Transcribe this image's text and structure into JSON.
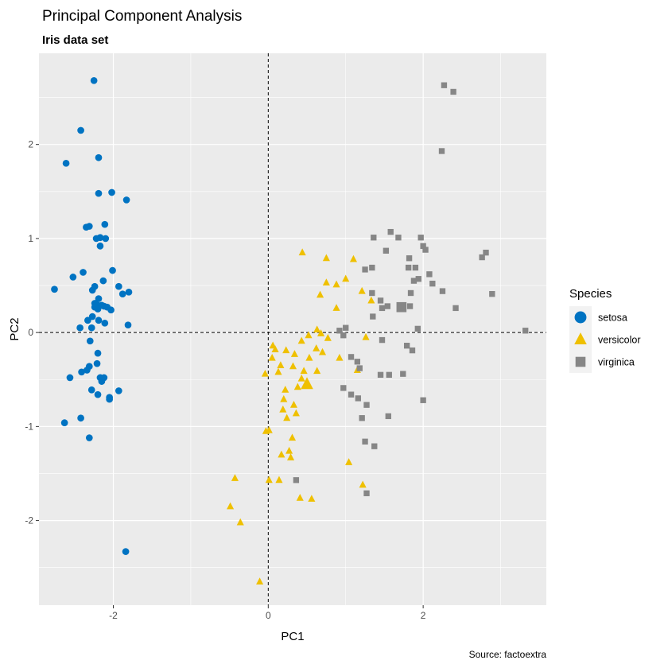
{
  "chart_data": {
    "type": "scatter",
    "title": "Principal Component Analysis",
    "subtitle": "Iris data set",
    "xlabel": "PC1",
    "ylabel": "PC2",
    "caption": "Source: factoextra",
    "xlim": [
      -2.96,
      3.59
    ],
    "ylim": [
      -2.9,
      2.97
    ],
    "xticks": [
      -2,
      0,
      2
    ],
    "xtick_labels": [
      "-2",
      "0",
      "2"
    ],
    "yticks": [
      -2,
      -1,
      0,
      1,
      2
    ],
    "ytick_labels": [
      "-2",
      "-1",
      "0",
      "1",
      "2"
    ],
    "grid": true,
    "reference_lines": {
      "x": 0,
      "y": 0
    },
    "legend": {
      "title": "Species",
      "position": "right",
      "entries": [
        {
          "label": "setosa",
          "color": "#0073C2",
          "shape": "circle"
        },
        {
          "label": "versicolor",
          "color": "#EFC000",
          "shape": "triangle"
        },
        {
          "label": "virginica",
          "color": "#868686",
          "shape": "square"
        }
      ]
    },
    "series": [
      {
        "name": "setosa",
        "color": "#0073C2",
        "shape": "circle",
        "centroid": null,
        "points": [
          [
            -2.25,
            2.68
          ],
          [
            -2.42,
            2.15
          ],
          [
            -2.61,
            1.8
          ],
          [
            -2.19,
            1.86
          ],
          [
            -2.02,
            1.49
          ],
          [
            -2.19,
            1.48
          ],
          [
            -1.83,
            1.41
          ],
          [
            -2.11,
            1.15
          ],
          [
            -2.31,
            1.13
          ],
          [
            -2.35,
            1.12
          ],
          [
            -2.17,
            1.01
          ],
          [
            -2.22,
            1.0
          ],
          [
            -2.1,
            1.0
          ],
          [
            -2.17,
            0.92
          ],
          [
            -2.01,
            0.66
          ],
          [
            -2.39,
            0.64
          ],
          [
            -2.52,
            0.59
          ],
          [
            -2.13,
            0.55
          ],
          [
            -2.24,
            0.49
          ],
          [
            -1.93,
            0.49
          ],
          [
            -2.27,
            0.45
          ],
          [
            -1.8,
            0.43
          ],
          [
            -2.76,
            0.46
          ],
          [
            -1.88,
            0.41
          ],
          [
            -2.19,
            0.36
          ],
          [
            -2.24,
            0.31
          ],
          [
            -2.2,
            0.29
          ],
          [
            -2.15,
            0.29
          ],
          [
            -2.24,
            0.27
          ],
          [
            -2.12,
            0.28
          ],
          [
            -2.08,
            0.27
          ],
          [
            -2.2,
            0.25
          ],
          [
            -2.03,
            0.24
          ],
          [
            -2.27,
            0.17
          ],
          [
            -2.19,
            0.13
          ],
          [
            -2.33,
            0.13
          ],
          [
            -2.11,
            0.1
          ],
          [
            -1.81,
            0.08
          ],
          [
            -2.28,
            0.05
          ],
          [
            -2.43,
            0.05
          ],
          [
            -2.3,
            -0.09
          ],
          [
            -2.2,
            -0.22
          ],
          [
            -2.21,
            -0.33
          ],
          [
            -2.31,
            -0.36
          ],
          [
            -2.34,
            -0.4
          ],
          [
            -2.41,
            -0.42
          ],
          [
            -2.17,
            -0.48
          ],
          [
            -2.12,
            -0.48
          ],
          [
            -2.15,
            -0.52
          ],
          [
            -2.56,
            -0.48
          ],
          [
            -1.93,
            -0.62
          ],
          [
            -2.28,
            -0.61
          ],
          [
            -2.2,
            -0.66
          ],
          [
            -2.05,
            -0.69
          ],
          [
            -2.05,
            -0.71
          ],
          [
            -2.42,
            -0.91
          ],
          [
            -2.63,
            -0.96
          ],
          [
            -2.31,
            -1.12
          ],
          [
            -1.84,
            -2.33
          ]
        ]
      },
      {
        "name": "versicolor",
        "color": "#EFC000",
        "shape": "triangle",
        "centroid": [
          0.5,
          -0.55
        ],
        "points": [
          [
            0.44,
            0.85
          ],
          [
            0.75,
            0.79
          ],
          [
            1.1,
            0.78
          ],
          [
            1.0,
            0.57
          ],
          [
            0.75,
            0.53
          ],
          [
            0.88,
            0.51
          ],
          [
            1.21,
            0.44
          ],
          [
            0.67,
            0.4
          ],
          [
            1.33,
            0.34
          ],
          [
            0.88,
            0.26
          ],
          [
            0.63,
            0.03
          ],
          [
            0.68,
            -0.01
          ],
          [
            0.52,
            -0.03
          ],
          [
            0.77,
            -0.06
          ],
          [
            1.26,
            -0.05
          ],
          [
            0.43,
            -0.09
          ],
          [
            0.06,
            -0.14
          ],
          [
            0.09,
            -0.18
          ],
          [
            0.23,
            -0.19
          ],
          [
            0.62,
            -0.17
          ],
          [
            0.7,
            -0.21
          ],
          [
            0.34,
            -0.23
          ],
          [
            0.53,
            -0.27
          ],
          [
            0.05,
            -0.27
          ],
          [
            0.92,
            -0.27
          ],
          [
            0.32,
            -0.36
          ],
          [
            0.16,
            -0.35
          ],
          [
            1.15,
            -0.4
          ],
          [
            0.46,
            -0.41
          ],
          [
            0.63,
            -0.41
          ],
          [
            0.13,
            -0.42
          ],
          [
            -0.04,
            -0.44
          ],
          [
            0.43,
            -0.49
          ],
          [
            0.38,
            -0.58
          ],
          [
            0.22,
            -0.61
          ],
          [
            0.2,
            -0.71
          ],
          [
            0.19,
            -0.82
          ],
          [
            0.33,
            -0.77
          ],
          [
            0.24,
            -0.91
          ],
          [
            0.36,
            -0.86
          ],
          [
            0.01,
            -1.04
          ],
          [
            -0.03,
            -1.05
          ],
          [
            0.31,
            -1.12
          ],
          [
            0.27,
            -1.26
          ],
          [
            0.17,
            -1.3
          ],
          [
            0.29,
            -1.33
          ],
          [
            1.04,
            -1.38
          ],
          [
            -0.43,
            -1.55
          ],
          [
            0.14,
            -1.57
          ],
          [
            0.01,
            -1.57
          ],
          [
            -0.49,
            -1.85
          ],
          [
            -0.36,
            -2.02
          ],
          [
            1.22,
            -1.62
          ],
          [
            0.41,
            -1.76
          ],
          [
            0.56,
            -1.77
          ],
          [
            -0.11,
            -2.65
          ]
        ]
      },
      {
        "name": "virginica",
        "color": "#868686",
        "shape": "square",
        "centroid": [
          1.72,
          0.27
        ],
        "points": [
          [
            2.27,
            2.63
          ],
          [
            2.39,
            2.56
          ],
          [
            2.24,
            1.93
          ],
          [
            1.58,
            1.07
          ],
          [
            1.36,
            1.01
          ],
          [
            1.68,
            1.01
          ],
          [
            1.97,
            1.01
          ],
          [
            2.0,
            0.92
          ],
          [
            2.03,
            0.88
          ],
          [
            1.52,
            0.87
          ],
          [
            2.81,
            0.85
          ],
          [
            1.82,
            0.79
          ],
          [
            2.76,
            0.8
          ],
          [
            1.34,
            0.69
          ],
          [
            1.9,
            0.69
          ],
          [
            1.81,
            0.69
          ],
          [
            1.25,
            0.67
          ],
          [
            2.08,
            0.62
          ],
          [
            1.94,
            0.57
          ],
          [
            1.88,
            0.55
          ],
          [
            2.12,
            0.52
          ],
          [
            2.25,
            0.44
          ],
          [
            1.34,
            0.42
          ],
          [
            2.89,
            0.41
          ],
          [
            1.84,
            0.42
          ],
          [
            1.45,
            0.34
          ],
          [
            1.83,
            0.28
          ],
          [
            1.54,
            0.28
          ],
          [
            1.47,
            0.26
          ],
          [
            2.42,
            0.26
          ],
          [
            1.35,
            0.17
          ],
          [
            1.0,
            0.05
          ],
          [
            0.97,
            -0.03
          ],
          [
            0.92,
            0.02
          ],
          [
            1.93,
            0.04
          ],
          [
            3.32,
            0.02
          ],
          [
            1.47,
            -0.08
          ],
          [
            1.79,
            -0.14
          ],
          [
            1.86,
            -0.19
          ],
          [
            1.07,
            -0.26
          ],
          [
            1.15,
            -0.31
          ],
          [
            1.18,
            -0.38
          ],
          [
            1.45,
            -0.45
          ],
          [
            1.56,
            -0.45
          ],
          [
            1.74,
            -0.44
          ],
          [
            0.97,
            -0.59
          ],
          [
            1.07,
            -0.66
          ],
          [
            1.16,
            -0.7
          ],
          [
            2.0,
            -0.72
          ],
          [
            1.27,
            -0.77
          ],
          [
            1.55,
            -0.89
          ],
          [
            1.21,
            -0.91
          ],
          [
            1.25,
            -1.16
          ],
          [
            1.37,
            -1.21
          ],
          [
            1.27,
            -1.71
          ],
          [
            0.36,
            -1.57
          ]
        ]
      }
    ]
  }
}
